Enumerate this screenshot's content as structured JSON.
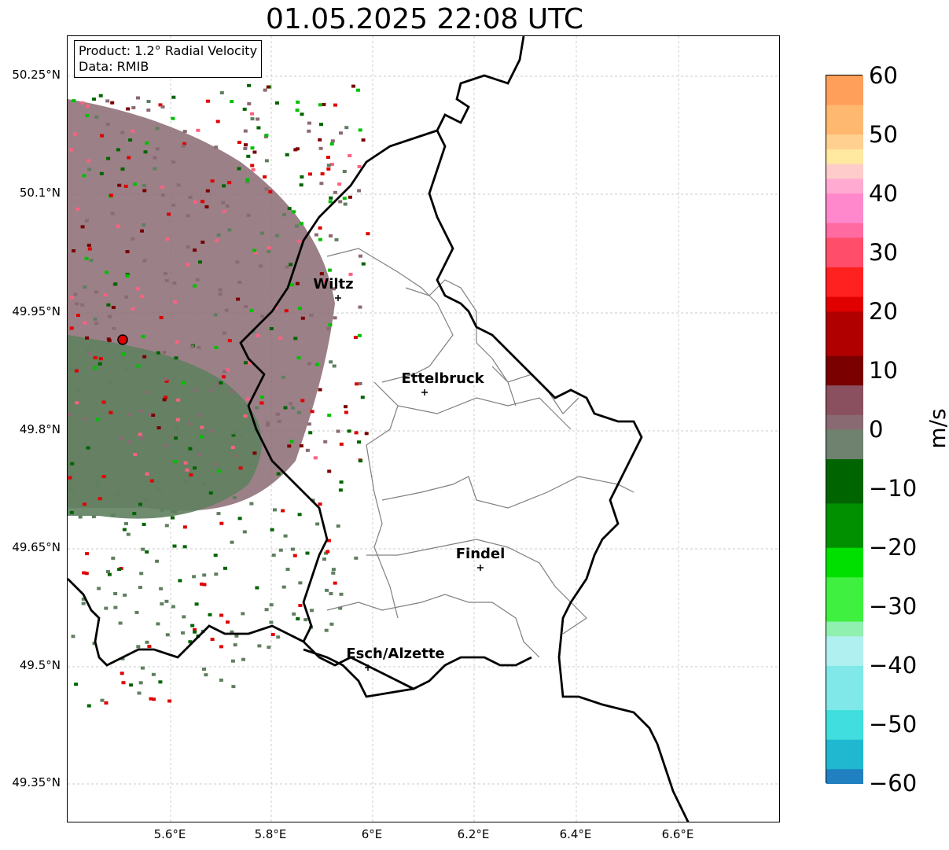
{
  "title": "01.05.2025 22:08 UTC",
  "info": {
    "product": "Product: 1.2° Radial Velocity",
    "source": "Data: RMIB"
  },
  "axes": {
    "lat_labels": [
      "50.25°N",
      "50.1°N",
      "49.95°N",
      "49.8°N",
      "49.65°N",
      "49.5°N",
      "49.35°N"
    ],
    "lon_labels": [
      "5.6°E",
      "5.8°E",
      "6°E",
      "6.2°E",
      "6.4°E",
      "6.6°E"
    ]
  },
  "cities": [
    {
      "name": "Wiltz"
    },
    {
      "name": "Ettelbruck"
    },
    {
      "name": "Findel"
    },
    {
      "name": "Esch/Alzette"
    }
  ],
  "colorbar": {
    "unit": "m/s",
    "tick_labels": [
      "60",
      "50",
      "40",
      "30",
      "20",
      "10",
      "0",
      "−10",
      "−20",
      "−30",
      "−40",
      "−50",
      "−60"
    ],
    "range": [
      -60,
      60
    ],
    "colors": {
      "brown_gray": "#8a6a72",
      "green_gray": "#5f7f5f",
      "dark_red": "#7a0000",
      "red": "#e00000",
      "green": "#00c000",
      "pink": "#ff6080",
      "cyan": "#30d8d8",
      "orange": "#ffa060"
    }
  }
}
